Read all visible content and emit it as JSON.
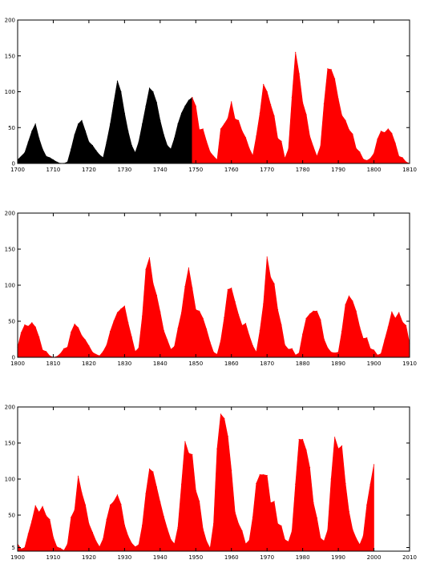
{
  "chart_data": [
    {
      "type": "area",
      "title": "",
      "xlabel": "",
      "ylabel": "",
      "xlim": [
        1700,
        1810
      ],
      "ylim": [
        0,
        200
      ],
      "xticks": [
        1700,
        1710,
        1720,
        1730,
        1740,
        1750,
        1760,
        1770,
        1780,
        1790,
        1800,
        1810
      ],
      "yticks": [
        0,
        50,
        100,
        150,
        200
      ],
      "ytick_labels": [
        "0",
        "50",
        "100",
        "150",
        "200"
      ],
      "grid": false,
      "series": [
        {
          "color": "#000000",
          "x": [
            1700,
            1702,
            1703,
            1704,
            1705,
            1706,
            1707,
            1708,
            1709,
            1710,
            1711,
            1712,
            1713,
            1714,
            1715,
            1716,
            1717,
            1718,
            1719,
            1720,
            1721,
            1722,
            1723,
            1724,
            1725,
            1726,
            1727,
            1728,
            1729,
            1730,
            1731,
            1732,
            1733,
            1734,
            1735,
            1736,
            1737,
            1738,
            1739,
            1740,
            1741,
            1742,
            1743,
            1744,
            1745,
            1746,
            1747,
            1748,
            1749
          ],
          "values": [
            5,
            15,
            30,
            45,
            55,
            35,
            20,
            10,
            8,
            5,
            2,
            0,
            0,
            2,
            20,
            40,
            55,
            60,
            45,
            30,
            25,
            18,
            12,
            8,
            30,
            55,
            85,
            115,
            100,
            70,
            45,
            25,
            15,
            30,
            55,
            80,
            105,
            100,
            85,
            60,
            40,
            25,
            20,
            35,
            55,
            70,
            80,
            88,
            92
          ]
        },
        {
          "color": "#ff0000",
          "x": [
            1749,
            1750,
            1751,
            1752,
            1753,
            1754,
            1755,
            1756,
            1757,
            1758,
            1759,
            1760,
            1761,
            1762,
            1763,
            1764,
            1765,
            1766,
            1767,
            1768,
            1769,
            1770,
            1771,
            1772,
            1773,
            1774,
            1775,
            1776,
            1777,
            1778,
            1779,
            1780,
            1781,
            1782,
            1783,
            1784,
            1785,
            1786,
            1787,
            1788,
            1789,
            1790,
            1791,
            1792,
            1793,
            1794,
            1795,
            1796,
            1797,
            1798,
            1799,
            1800,
            1801,
            1802,
            1803,
            1804,
            1805,
            1806,
            1807,
            1808,
            1809,
            1810
          ],
          "values": [
            92,
            80,
            47,
            48,
            31,
            16,
            10,
            5,
            48,
            55,
            63,
            86,
            62,
            60,
            45,
            36,
            21,
            11,
            38,
            70,
            110,
            100,
            82,
            66,
            35,
            31,
            7,
            20,
            92,
            155,
            125,
            85,
            68,
            38,
            23,
            10,
            24,
            83,
            132,
            131,
            118,
            90,
            67,
            60,
            47,
            41,
            21,
            16,
            6,
            4,
            7,
            14,
            34,
            45,
            43,
            48,
            42,
            28,
            10,
            8,
            2,
            0
          ]
        }
      ]
    },
    {
      "type": "area",
      "title": "",
      "xlabel": "",
      "ylabel": "",
      "xlim": [
        1800,
        1910
      ],
      "ylim": [
        0,
        200
      ],
      "xticks": [
        1800,
        1810,
        1820,
        1830,
        1840,
        1850,
        1860,
        1870,
        1880,
        1890,
        1900,
        1910
      ],
      "yticks": [
        0,
        50,
        100,
        150,
        200
      ],
      "ytick_labels": [
        "0",
        "50",
        "100",
        "150",
        "200"
      ],
      "grid": false,
      "series": [
        {
          "color": "#ff0000",
          "x": [
            1800,
            1801,
            1802,
            1803,
            1804,
            1805,
            1806,
            1807,
            1808,
            1809,
            1810,
            1811,
            1812,
            1813,
            1814,
            1815,
            1816,
            1817,
            1818,
            1819,
            1820,
            1821,
            1822,
            1823,
            1824,
            1825,
            1826,
            1827,
            1828,
            1829,
            1830,
            1831,
            1832,
            1833,
            1834,
            1835,
            1836,
            1837,
            1838,
            1839,
            1840,
            1841,
            1842,
            1843,
            1844,
            1845,
            1846,
            1847,
            1848,
            1849,
            1850,
            1851,
            1852,
            1853,
            1854,
            1855,
            1856,
            1857,
            1858,
            1859,
            1860,
            1861,
            1862,
            1863,
            1864,
            1865,
            1866,
            1867,
            1868,
            1869,
            1870,
            1871,
            1872,
            1873,
            1874,
            1875,
            1876,
            1877,
            1878,
            1879,
            1880,
            1881,
            1882,
            1883,
            1884,
            1885,
            1886,
            1887,
            1888,
            1889,
            1890,
            1891,
            1892,
            1893,
            1894,
            1895,
            1896,
            1897,
            1898,
            1899,
            1900,
            1901,
            1902,
            1903,
            1904,
            1905,
            1906,
            1907,
            1908,
            1909,
            1910
          ],
          "values": [
            14,
            34,
            45,
            43,
            48,
            42,
            28,
            10,
            8,
            2,
            0,
            1,
            5,
            12,
            14,
            35,
            46,
            41,
            30,
            24,
            16,
            7,
            4,
            2,
            8,
            17,
            36,
            50,
            62,
            67,
            71,
            48,
            28,
            8,
            13,
            57,
            122,
            138,
            103,
            86,
            63,
            37,
            24,
            11,
            15,
            40,
            62,
            98,
            124,
            96,
            66,
            64,
            54,
            39,
            21,
            7,
            4,
            23,
            55,
            94,
            96,
            77,
            59,
            44,
            47,
            30,
            16,
            7,
            37,
            74,
            139,
            111,
            102,
            66,
            45,
            17,
            11,
            12,
            3,
            6,
            32,
            54,
            60,
            64,
            64,
            52,
            25,
            13,
            7,
            6,
            7,
            36,
            73,
            85,
            78,
            64,
            42,
            26,
            27,
            12,
            10,
            3,
            5,
            24,
            42,
            63,
            54,
            62,
            49,
            44,
            19
          ]
        }
      ]
    },
    {
      "type": "area",
      "title": "",
      "xlabel": "",
      "ylabel": "",
      "xlim": [
        1900,
        2010
      ],
      "ylim": [
        0,
        200
      ],
      "xticks": [
        1900,
        1910,
        1920,
        1930,
        1940,
        1950,
        1960,
        1970,
        1980,
        1990,
        2000,
        2010
      ],
      "yticks": [
        5,
        50,
        100,
        150,
        200
      ],
      "ytick_labels": [
        "5",
        "50",
        "100",
        "150",
        "200"
      ],
      "grid": false,
      "series": [
        {
          "color": "#ff0000",
          "x": [
            1900,
            1901,
            1902,
            1903,
            1904,
            1905,
            1906,
            1907,
            1908,
            1909,
            1910,
            1911,
            1912,
            1913,
            1914,
            1915,
            1916,
            1917,
            1918,
            1919,
            1920,
            1921,
            1922,
            1923,
            1924,
            1925,
            1926,
            1927,
            1928,
            1929,
            1930,
            1931,
            1932,
            1933,
            1934,
            1935,
            1936,
            1937,
            1938,
            1939,
            1940,
            1941,
            1942,
            1943,
            1944,
            1945,
            1946,
            1947,
            1948,
            1949,
            1950,
            1951,
            1952,
            1953,
            1954,
            1955,
            1956,
            1957,
            1958,
            1959,
            1960,
            1961,
            1962,
            1963,
            1964,
            1965,
            1966,
            1967,
            1968,
            1969,
            1970,
            1971,
            1972,
            1973,
            1974,
            1975,
            1976,
            1977,
            1978,
            1979,
            1980,
            1981,
            1982,
            1983,
            1984,
            1985,
            1986,
            1987,
            1988,
            1989,
            1990,
            1991,
            1992,
            1993,
            1994,
            1995,
            1996,
            1997,
            1998,
            1999,
            2000
          ],
          "values": [
            10,
            3,
            5,
            24,
            42,
            63,
            54,
            62,
            49,
            44,
            19,
            6,
            4,
            1,
            10,
            47,
            57,
            104,
            81,
            64,
            38,
            26,
            14,
            6,
            17,
            44,
            64,
            69,
            78,
            65,
            36,
            21,
            11,
            6,
            9,
            36,
            80,
            114,
            110,
            89,
            68,
            48,
            31,
            16,
            10,
            33,
            93,
            152,
            136,
            134,
            84,
            69,
            31,
            14,
            4,
            38,
            142,
            190,
            184,
            159,
            112,
            54,
            38,
            28,
            10,
            15,
            47,
            94,
            106,
            106,
            105,
            67,
            69,
            38,
            35,
            16,
            13,
            28,
            93,
            155,
            155,
            140,
            116,
            67,
            46,
            18,
            14,
            29,
            100,
            158,
            142,
            146,
            94,
            55,
            30,
            18,
            9,
            21,
            64,
            93,
            120
          ]
        }
      ]
    }
  ]
}
